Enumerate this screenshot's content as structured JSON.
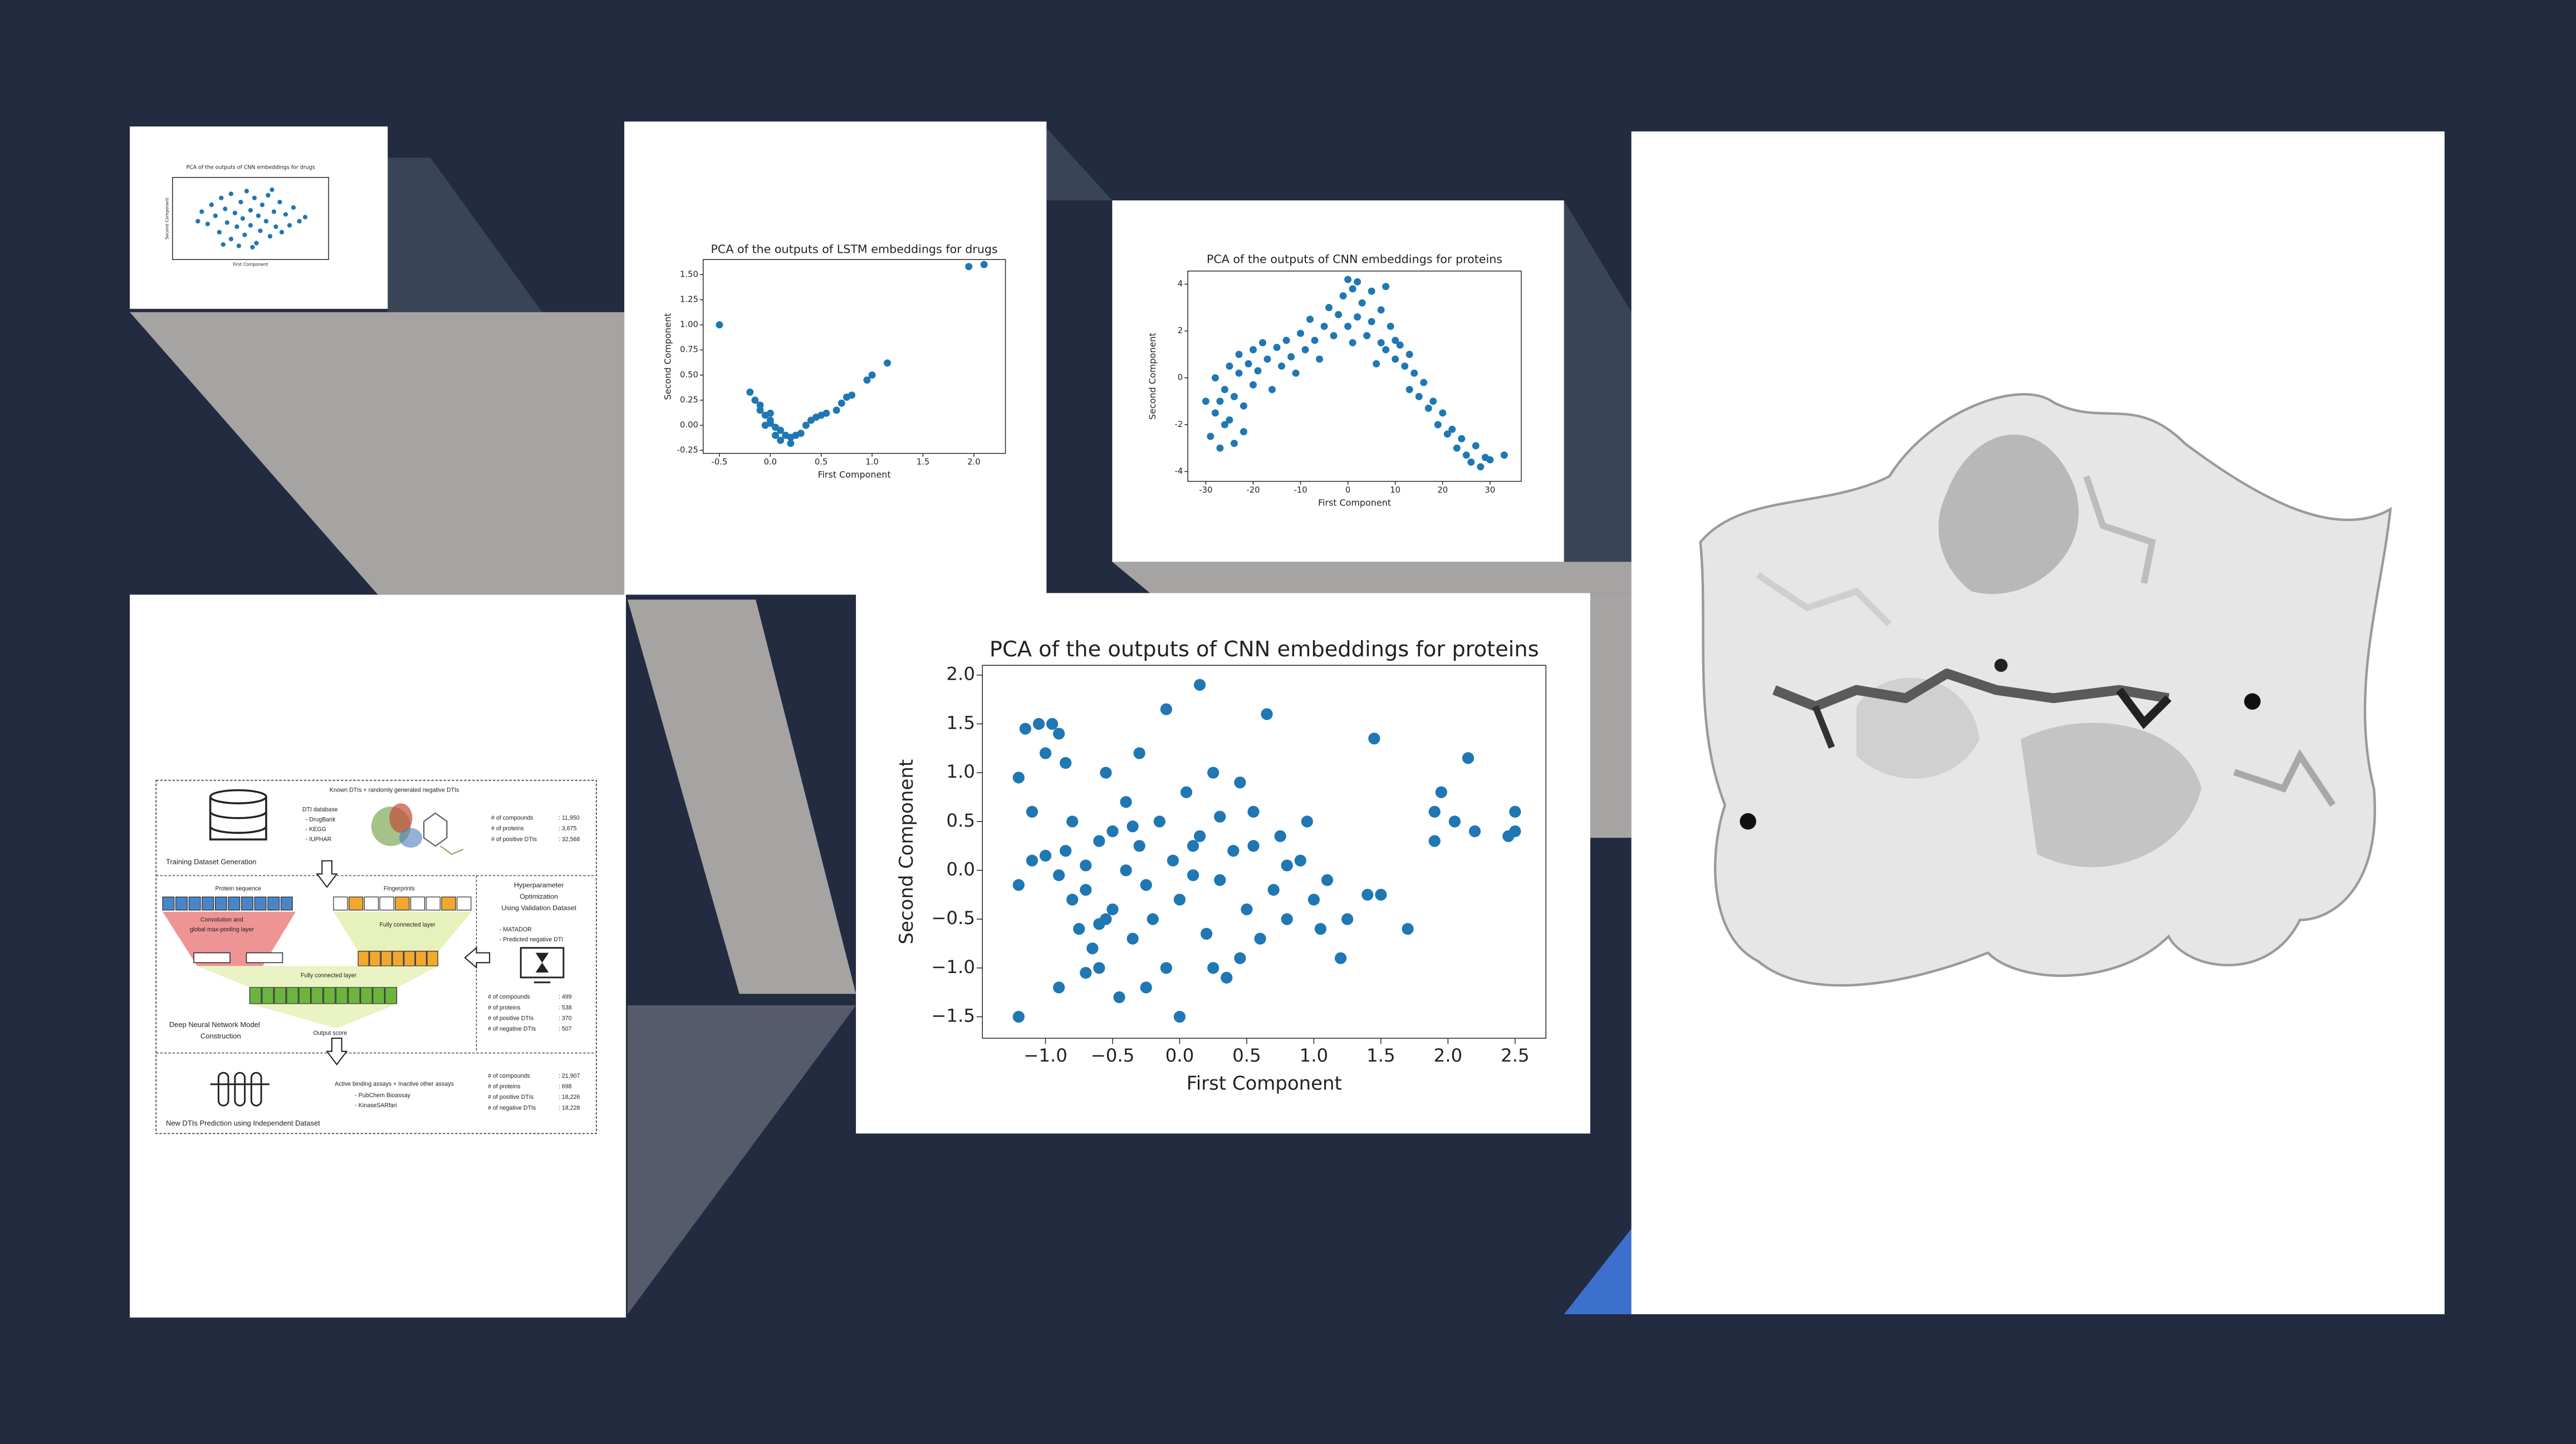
{
  "chart_data": [
    {
      "type": "scatter",
      "title": "PCA of the outputs of CNN embeddings for drugs",
      "x_label": "First Component",
      "y_label": "Second Component",
      "color": "#1f77b4",
      "xlim": [
        -4,
        4
      ],
      "ylim": [
        -3,
        3
      ],
      "x": [
        -2.5,
        -2.2,
        -2,
        -1.8,
        -1.6,
        -1.5,
        -1.3,
        -1.2,
        -1,
        -1,
        -0.8,
        -0.7,
        -0.5,
        -0.4,
        -0.3,
        -0.2,
        0,
        0,
        0.2,
        0.3,
        0.4,
        0.5,
        0.6,
        0.8,
        0.9,
        1,
        1.2,
        1.3,
        1.5,
        1.6,
        1.8,
        2,
        2.2,
        2.5,
        2.8,
        -2.7,
        0.1,
        -0.6,
        1.1,
        -1.4
      ],
      "values": [
        0.5,
        -0.4,
        1,
        0.2,
        -1,
        1.5,
        0.7,
        -0.3,
        1.8,
        -1.5,
        0.4,
        -0.6,
        1.2,
        0,
        -1.2,
        2,
        0.6,
        -0.5,
        1.5,
        -1.8,
        0.2,
        -0.9,
        1,
        -0.2,
        1.7,
        -1.3,
        0.5,
        -0.6,
        1.2,
        -1,
        0.3,
        -0.5,
        0.8,
        -0.2,
        0.1,
        -0.2,
        -2.1,
        -2,
        2.1,
        -1.9
      ]
    },
    {
      "type": "scatter",
      "title": "PCA of the outputs of LSTM embeddings for drugs",
      "x_label": "First Component",
      "y_label": "Second Component",
      "color": "#1f77b4",
      "xlim": [
        -0.66,
        2.31
      ],
      "ylim": [
        -0.28,
        1.65
      ],
      "xticks": [
        {
          "value": -0.5,
          "label": "-0.5"
        },
        {
          "value": 0,
          "label": "0.0"
        },
        {
          "value": 0.5,
          "label": "0.5"
        },
        {
          "value": 1,
          "label": "1.0"
        },
        {
          "value": 1.5,
          "label": "1.5"
        },
        {
          "value": 2,
          "label": "2.0"
        }
      ],
      "yticks": [
        {
          "value": -0.25,
          "label": "-0.25"
        },
        {
          "value": 0,
          "label": "0.00"
        },
        {
          "value": 0.25,
          "label": "0.25"
        },
        {
          "value": 0.5,
          "label": "0.50"
        },
        {
          "value": 0.75,
          "label": "0.75"
        },
        {
          "value": 1,
          "label": "1.00"
        },
        {
          "value": 1.25,
          "label": "1.25"
        },
        {
          "value": 1.5,
          "label": "1.50"
        }
      ],
      "x": [
        -0.5,
        -0.2,
        -0.15,
        -0.1,
        -0.1,
        -0.05,
        0,
        0,
        0.05,
        0.1,
        0.15,
        0.2,
        0.25,
        0.3,
        0.35,
        0.4,
        0.45,
        0.5,
        0.55,
        0.65,
        0.7,
        0.75,
        0.8,
        0.95,
        1.0,
        1.15,
        1.95,
        2.1,
        -0.05,
        0.1,
        0.05,
        0.2,
        0.0
      ],
      "values": [
        1.0,
        0.33,
        0.25,
        0.2,
        0.15,
        0.1,
        0.05,
        0.02,
        -0.02,
        -0.05,
        -0.1,
        -0.12,
        -0.1,
        -0.08,
        0,
        0.05,
        0.08,
        0.1,
        0.12,
        0.15,
        0.22,
        0.28,
        0.3,
        0.45,
        0.5,
        0.62,
        1.58,
        1.6,
        0.0,
        -0.15,
        -0.1,
        -0.18,
        0.12
      ]
    },
    {
      "type": "scatter",
      "title": "PCA of the outputs of CNN embeddings for proteins",
      "x_label": "First Component",
      "y_label": "Second Component",
      "color": "#1f77b4",
      "xlim": [
        -33.8,
        36.6
      ],
      "ylim": [
        -4.42,
        4.56
      ],
      "xticks": [
        -30,
        -20,
        -10,
        0,
        10,
        20,
        30
      ],
      "yticks": [
        -4,
        -2,
        0,
        2,
        4
      ],
      "x": [
        -30,
        -29,
        -28,
        -28,
        -27,
        -27,
        -26,
        -26,
        -25,
        -25,
        -24,
        -24,
        -23,
        -23,
        -22,
        -22,
        -21,
        -20,
        -20,
        -19,
        -18,
        -17,
        -16,
        -15,
        -14,
        -13,
        -12,
        -11,
        -10,
        -9,
        -8,
        -7,
        -6,
        -5,
        -4,
        -3,
        -2,
        -1,
        0,
        0,
        1,
        1,
        2,
        2,
        3,
        4,
        5,
        5,
        6,
        7,
        7,
        8,
        8,
        9,
        10,
        10,
        11,
        12,
        13,
        13,
        14,
        15,
        16,
        17,
        18,
        19,
        20,
        21,
        22,
        23,
        24,
        25,
        26,
        27,
        28,
        29,
        30,
        33
      ],
      "values": [
        -1,
        -2.5,
        -1.5,
        0,
        -3,
        -1,
        -0.5,
        -2,
        0.5,
        -1.8,
        -0.8,
        -2.8,
        1,
        0.2,
        -1.2,
        -2.3,
        0.6,
        1.2,
        -0.3,
        0.3,
        1.5,
        0.8,
        -0.5,
        1.3,
        0.5,
        1.6,
        0.9,
        0.2,
        1.9,
        1.2,
        2.5,
        1.6,
        0.8,
        2.2,
        3,
        1.8,
        2.7,
        3.5,
        4.2,
        2.2,
        3.8,
        1.5,
        4.1,
        2.6,
        3.2,
        1.8,
        3.7,
        2.4,
        0.6,
        2.9,
        1.5,
        3.9,
        1.2,
        2.2,
        1.6,
        0.8,
        1.4,
        0.5,
        -0.5,
        1,
        0.2,
        -0.8,
        -0.2,
        -1.3,
        -1,
        -2,
        -1.5,
        -2.4,
        -2.2,
        -3,
        -2.6,
        -3.3,
        -3.6,
        -2.9,
        -3.8,
        -3.4,
        -3.5,
        -3.3
      ]
    },
    {
      "type": "scatter",
      "title": "PCA of the outputs of CNN embeddings for proteins",
      "x_label": "First Component",
      "y_label": "Second Component",
      "color": "#1f77b4",
      "xlim": [
        -1.47,
        2.73
      ],
      "ylim": [
        -1.72,
        2.1
      ],
      "xticks": [
        {
          "value": -1,
          "label": "−1.0"
        },
        {
          "value": -0.5,
          "label": "−0.5"
        },
        {
          "value": 0,
          "label": "0.0"
        },
        {
          "value": 0.5,
          "label": "0.5"
        },
        {
          "value": 1,
          "label": "1.0"
        },
        {
          "value": 1.5,
          "label": "1.5"
        },
        {
          "value": 2,
          "label": "2.0"
        },
        {
          "value": 2.5,
          "label": "2.5"
        }
      ],
      "yticks": [
        {
          "value": -1.5,
          "label": "−1.5"
        },
        {
          "value": -1,
          "label": "−1.0"
        },
        {
          "value": -0.5,
          "label": "−0.5"
        },
        {
          "value": 0,
          "label": "0.0"
        },
        {
          "value": 0.5,
          "label": "0.5"
        },
        {
          "value": 1,
          "label": "1.0"
        },
        {
          "value": 1.5,
          "label": "1.5"
        },
        {
          "value": 2,
          "label": "2.0"
        }
      ],
      "x": [
        -1.2,
        -1.15,
        -1.1,
        -1.05,
        -0.95,
        -0.9,
        -1.0,
        -0.85,
        -1.1,
        -1.2,
        -1.0,
        -0.9,
        -0.85,
        -0.8,
        -0.8,
        -0.75,
        -0.7,
        -0.7,
        -0.65,
        -0.6,
        -0.6,
        -0.55,
        -0.5,
        -0.5,
        -0.45,
        -0.4,
        -0.4,
        -0.35,
        -0.3,
        -0.3,
        -0.25,
        -0.2,
        -0.15,
        -0.1,
        -0.1,
        -0.05,
        0.0,
        0.0,
        0.05,
        0.1,
        0.15,
        0.15,
        0.2,
        0.25,
        0.3,
        0.3,
        0.35,
        0.4,
        0.45,
        0.5,
        0.55,
        0.6,
        0.65,
        0.7,
        0.75,
        0.8,
        0.9,
        0.95,
        1.0,
        1.05,
        1.1,
        1.2,
        1.25,
        1.4,
        1.45,
        1.5,
        1.7,
        -0.9,
        -0.7,
        -0.55,
        0.1,
        0.45,
        -1.2,
        -0.25,
        1.9,
        1.9,
        1.95,
        2.05,
        2.15,
        2.2,
        2.45,
        2.5,
        2.5,
        -0.6,
        0.25,
        0.8,
        -0.35,
        0.55
      ],
      "values": [
        0.95,
        1.45,
        0.6,
        1.5,
        1.5,
        1.4,
        1.2,
        1.1,
        0.1,
        -0.15,
        0.15,
        -0.05,
        0.2,
        -0.3,
        0.5,
        -0.6,
        0.05,
        -0.2,
        -0.8,
        0.3,
        -1.0,
        1.0,
        0.4,
        -0.4,
        -1.3,
        0.7,
        0.0,
        -0.7,
        1.2,
        0.25,
        -0.15,
        -0.5,
        0.5,
        1.65,
        -1.0,
        0.1,
        -0.3,
        -1.5,
        0.8,
        -0.05,
        1.9,
        0.35,
        -0.65,
        1.0,
        -0.1,
        0.55,
        -1.1,
        0.2,
        0.9,
        -0.4,
        0.6,
        -0.7,
        1.6,
        -0.2,
        0.35,
        -0.5,
        0.1,
        0.5,
        -0.3,
        -0.6,
        -0.1,
        -0.9,
        -0.5,
        -0.25,
        1.35,
        -0.25,
        -0.6,
        -1.2,
        -1.05,
        -0.5,
        0.25,
        -0.9,
        -1.5,
        -1.2,
        0.6,
        0.3,
        0.8,
        0.5,
        1.15,
        0.4,
        0.35,
        0.6,
        0.4,
        -0.55,
        -1.0,
        0.05,
        0.45,
        0.25
      ]
    }
  ],
  "diagram": {
    "header": "Known DTIs + randomly generated negative DTIs",
    "database_title": "DTI database",
    "databases": [
      "- DrugBank",
      "- KEGG",
      "- IUPHAR"
    ],
    "training_stats": [
      [
        "# of compounds",
        ": 11,950"
      ],
      [
        "# of proteins",
        ": 3,675"
      ],
      [
        "# of positive DTIs",
        ": 32,568"
      ]
    ],
    "training_caption": "Training Dataset Generation",
    "protein_sequence": "Protein sequence",
    "fingerprints": "Fingerprints",
    "conv_layer": [
      "Convolution and",
      "global max-pooling layer"
    ],
    "fc_layer_1": "Fully connected layer",
    "fc_layer_2": "Fully connected layer",
    "output": "Output score",
    "model_caption": [
      "Deep Neural Network Model",
      "Construction"
    ],
    "validation_title": [
      "Hyperparameter",
      "Optimization",
      "Using Validation Dataset"
    ],
    "validation_sources": [
      "- MATADOR",
      "- Predicted negative DTI"
    ],
    "validation_stats": [
      [
        "# of compounds",
        ": 499"
      ],
      [
        "# of proteins",
        ": 538"
      ],
      [
        "# of positive DTIs",
        ": 370"
      ],
      [
        "# of negative DTIs",
        ": 507"
      ]
    ],
    "test_header": "Active binding assays + Inactive other assays",
    "test_sources": [
      "- PubChem Bioassay",
      "- KinaseSARfari"
    ],
    "test_stats": [
      [
        "# of compounds",
        ": 21,907"
      ],
      [
        "# of proteins",
        ": 698"
      ],
      [
        "# of positive DTIs",
        ": 18,226"
      ],
      [
        "# of negative DTIs",
        ": 18,228"
      ]
    ],
    "test_caption": "New DTIs Prediction using Independent Dataset"
  }
}
